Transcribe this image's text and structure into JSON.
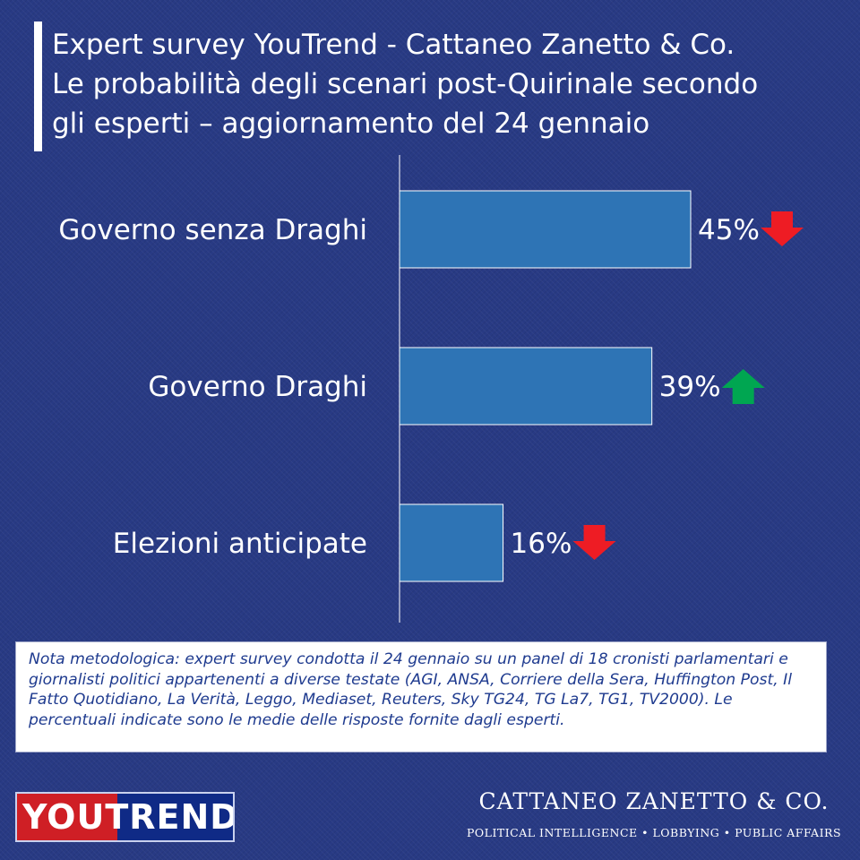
{
  "header": {
    "title_lines": [
      "Expert survey YouTrend - Cattaneo Zanetto & Co.",
      "Le probabilità degli scenari post-Quirinale secondo",
      "gli esperti – aggiornamento del 24 gennaio"
    ]
  },
  "chart_data": {
    "type": "bar",
    "orientation": "horizontal",
    "categories": [
      "Governo senza Draghi",
      "Governo Draghi",
      "Elezioni anticipate"
    ],
    "values": [
      45,
      39,
      16
    ],
    "value_labels": [
      "45%",
      "39%",
      "16%"
    ],
    "trend": [
      "down",
      "up",
      "down"
    ],
    "xlim": [
      0,
      45
    ],
    "grid": false,
    "legend": "none",
    "colors": {
      "bar": "#2e74b5",
      "bar_border": "#ffffff",
      "axis": "#ffffff",
      "arrow_up": "#00a651",
      "arrow_down": "#ee1c24"
    }
  },
  "note": {
    "text": "Nota metodologica: expert survey condotta il 24 gennaio su un panel di 18 cronisti parlamentari e giornalisti politici appartenenti a diverse testate (AGI, ANSA, Corriere della Sera, Huffington Post, Il Fatto Quotidiano, La Verità, Leggo, Mediaset, Reuters, Sky TG24, TG La7, TG1, TV2000). Le percentuali indicate sono le medie delle risposte fornite dagli esperti."
  },
  "footer": {
    "logo_left": "YOUTREND",
    "logo_right_name": "CATTANEO ZANETTO & CO.",
    "logo_right_tagline": "POLITICAL INTELLIGENCE • LOBBYING • PUBLIC AFFAIRS"
  }
}
